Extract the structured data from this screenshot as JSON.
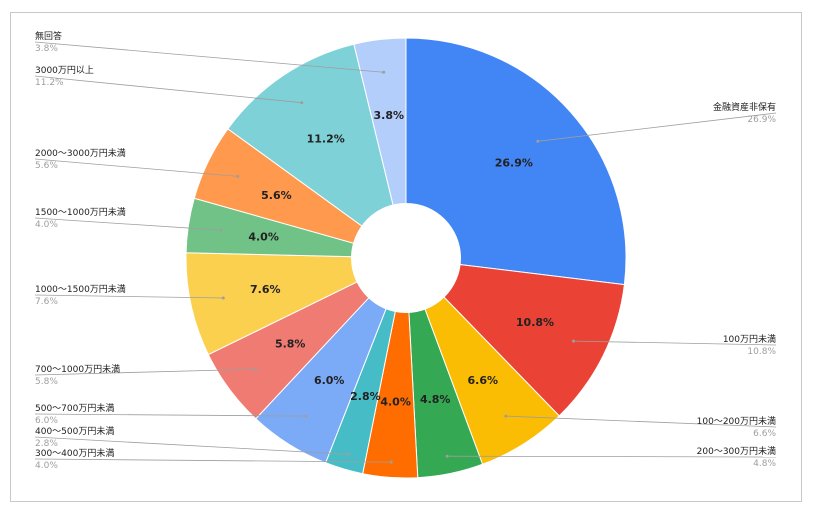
{
  "chart_data": {
    "type": "pie",
    "donut": true,
    "legend": "callout-labels",
    "slices": [
      {
        "label": "金融資産非保有",
        "value": 26.9,
        "value_label": "26.9%",
        "color": "#4285f4"
      },
      {
        "label": "100万円未満",
        "value": 10.8,
        "value_label": "10.8%",
        "color": "#ea4335"
      },
      {
        "label": "100～200万円未満",
        "value": 6.6,
        "value_label": "6.6%",
        "color": "#fbbc04"
      },
      {
        "label": "200～300万円未満",
        "value": 4.8,
        "value_label": "4.8%",
        "color": "#34a853"
      },
      {
        "label": "300～400万円未満",
        "value": 4.0,
        "value_label": "4.0%",
        "color": "#ff6d01"
      },
      {
        "label": "400～500万円未満",
        "value": 2.8,
        "value_label": "2.8%",
        "color": "#46bdc6"
      },
      {
        "label": "500～700万円未満",
        "value": 6.0,
        "value_label": "6.0%",
        "color": "#7baaf7"
      },
      {
        "label": "700～1000万円未満",
        "value": 5.8,
        "value_label": "5.8%",
        "color": "#f07b72"
      },
      {
        "label": "1000～1500万円未満",
        "value": 7.6,
        "value_label": "7.6%",
        "color": "#fcd04f"
      },
      {
        "label": "1500～1000万円未満",
        "value": 4.0,
        "value_label": "4.0%",
        "color": "#71c287"
      },
      {
        "label": "2000～3000万円未満",
        "value": 5.6,
        "value_label": "5.6%",
        "color": "#ff994d"
      },
      {
        "label": "3000万円以上",
        "value": 11.2,
        "value_label": "11.2%",
        "color": "#7ed1d7"
      },
      {
        "label": "無回答",
        "value": 3.8,
        "value_label": "3.8%",
        "color": "#b3cefb"
      }
    ]
  }
}
